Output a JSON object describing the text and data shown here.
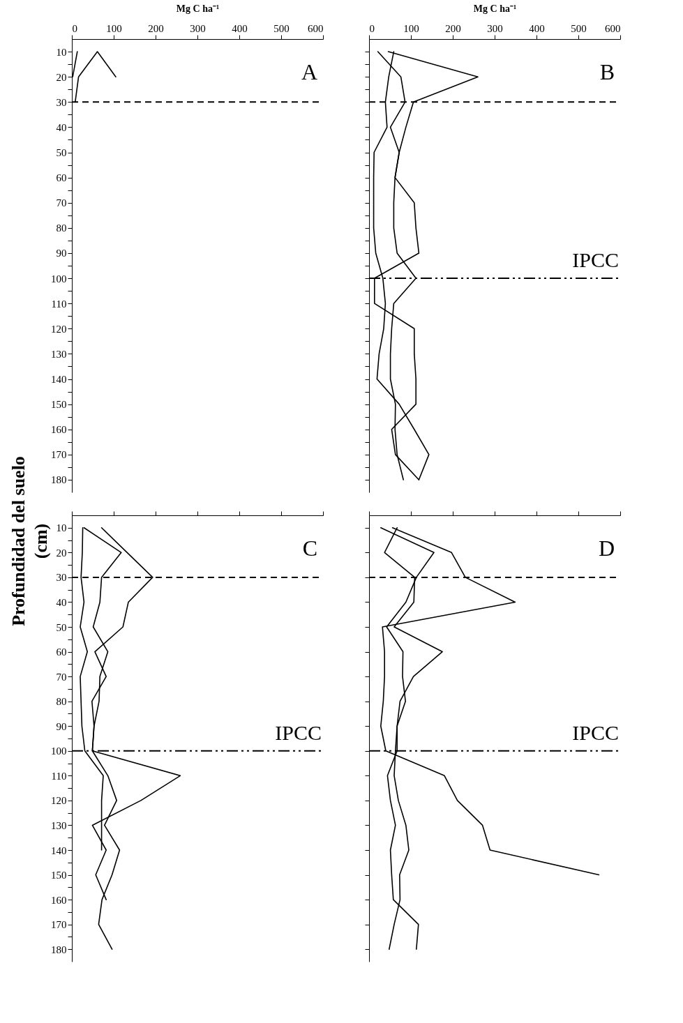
{
  "chart_data": [
    {
      "type": "line",
      "xlabel": "Mg C ha⁻¹",
      "ylabel": "Profundidad  del suelo\n(cm)",
      "annotations": [
        "A"
      ],
      "xlim": [
        0,
        600
      ],
      "xticks": [
        0,
        100,
        200,
        300,
        400,
        500,
        600
      ],
      "ylim": [
        185,
        5
      ],
      "yticks": [
        10,
        20,
        30,
        40,
        50,
        60,
        70,
        80,
        90,
        100,
        110,
        120,
        130,
        140,
        150,
        160,
        170,
        180,
        {
          "value": 15,
          "label": null
        },
        {
          "value": 25,
          "label": null
        },
        {
          "value": 35,
          "label": null
        },
        {
          "value": 45,
          "label": null
        },
        {
          "value": 55,
          "label": null
        },
        {
          "value": 65,
          "label": null
        },
        {
          "value": 75,
          "label": null
        },
        {
          "value": 85,
          "label": null
        },
        {
          "value": 95,
          "label": null
        },
        {
          "value": 105,
          "label": null
        },
        {
          "value": 115,
          "label": null
        },
        {
          "value": 125,
          "label": null
        },
        {
          "value": 135,
          "label": null
        },
        {
          "value": 145,
          "label": null
        },
        {
          "value": 155,
          "label": null
        },
        {
          "value": 165,
          "label": null
        },
        {
          "value": 175,
          "label": null
        }
      ],
      "ref_lines": [
        {
          "axis": "y",
          "value": 30,
          "line_style": "dashed"
        }
      ],
      "series": [
        {
          "color": "#000000",
          "x": [
            13,
            2
          ],
          "values": [
            10,
            20
          ]
        },
        {
          "color": "#000000",
          "x": [
            8,
            16,
            61,
            105
          ],
          "values": [
            30,
            20,
            10,
            20
          ]
        }
      ]
    },
    {
      "type": "line",
      "xlabel": "Mg C ha⁻¹",
      "annotations": [
        "B"
      ],
      "tick_labels": "x",
      "xlim": [
        0,
        600
      ],
      "xticks": [
        0,
        100,
        200,
        300,
        400,
        500,
        600
      ],
      "ylim": [
        185,
        5
      ],
      "yticks": [
        10,
        20,
        30,
        40,
        50,
        60,
        70,
        80,
        90,
        100,
        110,
        120,
        130,
        140,
        150,
        160,
        170,
        180,
        {
          "value": 15,
          "label": null
        },
        {
          "value": 25,
          "label": null
        },
        {
          "value": 35,
          "label": null
        },
        {
          "value": 45,
          "label": null
        },
        {
          "value": 55,
          "label": null
        },
        {
          "value": 65,
          "label": null
        },
        {
          "value": 75,
          "label": null
        },
        {
          "value": 85,
          "label": null
        },
        {
          "value": 95,
          "label": null
        },
        {
          "value": 105,
          "label": null
        },
        {
          "value": 115,
          "label": null
        },
        {
          "value": 125,
          "label": null
        },
        {
          "value": 135,
          "label": null
        },
        {
          "value": 145,
          "label": null
        },
        {
          "value": 155,
          "label": null
        },
        {
          "value": 165,
          "label": null
        },
        {
          "value": 175,
          "label": null
        }
      ],
      "ref_lines": [
        {
          "axis": "y",
          "value": 30,
          "line_style": "dashed"
        },
        {
          "axis": "y",
          "value": 100,
          "label": "IPCC",
          "line_style": "dashdot"
        }
      ],
      "series": [
        {
          "color": "#000000",
          "x": [
            59,
            47,
            39,
            43,
            12,
            11,
            11,
            11,
            16,
            33,
            39,
            35,
            24,
            19,
            72,
            108,
            143,
            119
          ],
          "values": [
            10,
            20,
            30,
            40,
            50,
            60,
            70,
            80,
            90,
            100,
            110,
            120,
            130,
            140,
            150,
            160,
            170,
            180
          ]
        },
        {
          "color": "#000000",
          "x": [
            21,
            76,
            86,
            51,
            72,
            62,
            59,
            59,
            67,
            112,
            59,
            54,
            51,
            51,
            63,
            62,
            67,
            82
          ],
          "values": [
            10,
            20,
            30,
            40,
            50,
            60,
            70,
            80,
            90,
            100,
            110,
            120,
            130,
            140,
            150,
            160,
            170,
            180
          ]
        },
        {
          "color": "#000000",
          "x": [
            46,
            260,
            106,
            88,
            72,
            62,
            108,
            112,
            119,
            13,
            13,
            108,
            108,
            112,
            112,
            54,
            63,
            119
          ],
          "values": [
            10,
            20,
            30,
            40,
            50,
            60,
            70,
            80,
            90,
            100,
            110,
            120,
            130,
            140,
            150,
            160,
            170,
            180
          ]
        }
      ]
    },
    {
      "type": "line",
      "annotations": [
        "C"
      ],
      "tick_labels": "y",
      "xlim": [
        0,
        600
      ],
      "xticks": [
        {
          "value": 0,
          "label": null
        },
        {
          "value": 100,
          "label": null
        },
        {
          "value": 200,
          "label": null
        },
        {
          "value": 300,
          "label": null
        },
        {
          "value": 400,
          "label": null
        },
        {
          "value": 500,
          "label": null
        },
        {
          "value": 600,
          "label": null
        }
      ],
      "ylim": [
        185,
        5
      ],
      "yticks": [
        10,
        20,
        30,
        40,
        50,
        60,
        70,
        80,
        90,
        100,
        110,
        120,
        130,
        140,
        150,
        160,
        170,
        180,
        {
          "value": 15,
          "label": null
        },
        {
          "value": 25,
          "label": null
        },
        {
          "value": 35,
          "label": null
        },
        {
          "value": 45,
          "label": null
        },
        {
          "value": 55,
          "label": null
        },
        {
          "value": 65,
          "label": null
        },
        {
          "value": 75,
          "label": null
        },
        {
          "value": 85,
          "label": null
        },
        {
          "value": 95,
          "label": null
        },
        {
          "value": 105,
          "label": null
        },
        {
          "value": 115,
          "label": null
        },
        {
          "value": 125,
          "label": null
        },
        {
          "value": 135,
          "label": null
        },
        {
          "value": 145,
          "label": null
        },
        {
          "value": 155,
          "label": null
        },
        {
          "value": 165,
          "label": null
        },
        {
          "value": 175,
          "label": null
        }
      ],
      "ref_lines": [
        {
          "axis": "y",
          "value": 30,
          "line_style": "dashed"
        },
        {
          "axis": "y",
          "value": 100,
          "label": "IPCC",
          "line_style": "dashdot"
        }
      ],
      "series": [
        {
          "color": "#000000",
          "x": [
            26,
            25,
            22,
            29,
            20,
            37,
            20,
            22,
            24,
            31,
            75,
            71,
            71,
            71
          ],
          "values": [
            10,
            20,
            30,
            40,
            50,
            60,
            70,
            80,
            90,
            100,
            110,
            120,
            130,
            140
          ]
        },
        {
          "color": "#000000",
          "x": [
            29,
            118,
            71,
            67,
            51,
            86,
            67,
            65,
            53,
            49,
            86,
            107,
            78,
            114,
            96,
            72,
            64,
            96
          ],
          "values": [
            10,
            20,
            30,
            40,
            50,
            60,
            70,
            80,
            90,
            100,
            110,
            120,
            130,
            140,
            150,
            160,
            170,
            180
          ]
        },
        {
          "color": "#000000",
          "x": [
            71,
            132,
            193,
            135,
            122,
            55,
            82,
            48,
            53,
            49,
            259,
            165,
            49,
            82,
            57,
            82
          ],
          "values": [
            10,
            20,
            30,
            40,
            50,
            60,
            70,
            80,
            90,
            100,
            110,
            120,
            130,
            140,
            150,
            160
          ]
        }
      ]
    },
    {
      "type": "line",
      "annotations": [
        "D"
      ],
      "tick_labels": false,
      "xlim": [
        0,
        600
      ],
      "xticks": [
        {
          "value": 0,
          "label": null
        },
        {
          "value": 100,
          "label": null
        },
        {
          "value": 200,
          "label": null
        },
        {
          "value": 300,
          "label": null
        },
        {
          "value": 400,
          "label": null
        },
        {
          "value": 500,
          "label": null
        },
        {
          "value": 600,
          "label": null
        }
      ],
      "ylim": [
        185,
        5
      ],
      "yticks": [
        {
          "value": 10,
          "label": null
        },
        {
          "value": 20,
          "label": null
        },
        {
          "value": 30,
          "label": null
        },
        {
          "value": 40,
          "label": null
        },
        {
          "value": 50,
          "label": null
        },
        {
          "value": 60,
          "label": null
        },
        {
          "value": 70,
          "label": null
        },
        {
          "value": 80,
          "label": null
        },
        {
          "value": 90,
          "label": null
        },
        {
          "value": 100,
          "label": null
        },
        {
          "value": 110,
          "label": null
        },
        {
          "value": 120,
          "label": null
        },
        {
          "value": 130,
          "label": null
        },
        {
          "value": 140,
          "label": null
        },
        {
          "value": 150,
          "label": null
        },
        {
          "value": 160,
          "label": null
        },
        {
          "value": 170,
          "label": null
        },
        {
          "value": 180,
          "label": null
        }
      ],
      "ref_lines": [
        {
          "axis": "y",
          "value": 30,
          "line_style": "dashed"
        },
        {
          "axis": "y",
          "value": 100,
          "label": "IPCC",
          "line_style": "dashdot"
        }
      ],
      "series": [
        {
          "color": "#000000",
          "x": [
            28,
            155,
            113,
            88,
            42,
            81,
            80,
            87,
            67,
            67,
            44,
            51,
            63,
            51,
            54,
            58,
            118,
            113
          ],
          "values": [
            10,
            20,
            30,
            40,
            50,
            60,
            70,
            80,
            90,
            100,
            110,
            120,
            130,
            140,
            150,
            160,
            170,
            180
          ]
        },
        {
          "color": "#000000",
          "x": [
            67,
            37,
            109,
            107,
            60,
            175,
            106,
            74,
            67,
            63,
            60,
            70,
            88,
            95,
            73,
            74,
            60,
            48
          ],
          "values": [
            10,
            20,
            30,
            40,
            50,
            60,
            70,
            80,
            90,
            100,
            110,
            120,
            130,
            140,
            150,
            160,
            170,
            180
          ]
        },
        {
          "color": "#000000",
          "x": [
            56,
            197,
            230,
            349,
            32,
            37,
            37,
            34,
            28,
            40,
            180,
            211,
            271,
            289,
            549
          ],
          "values": [
            10,
            20,
            30,
            40,
            50,
            60,
            70,
            80,
            90,
            100,
            110,
            120,
            130,
            140,
            150
          ]
        }
      ]
    }
  ]
}
